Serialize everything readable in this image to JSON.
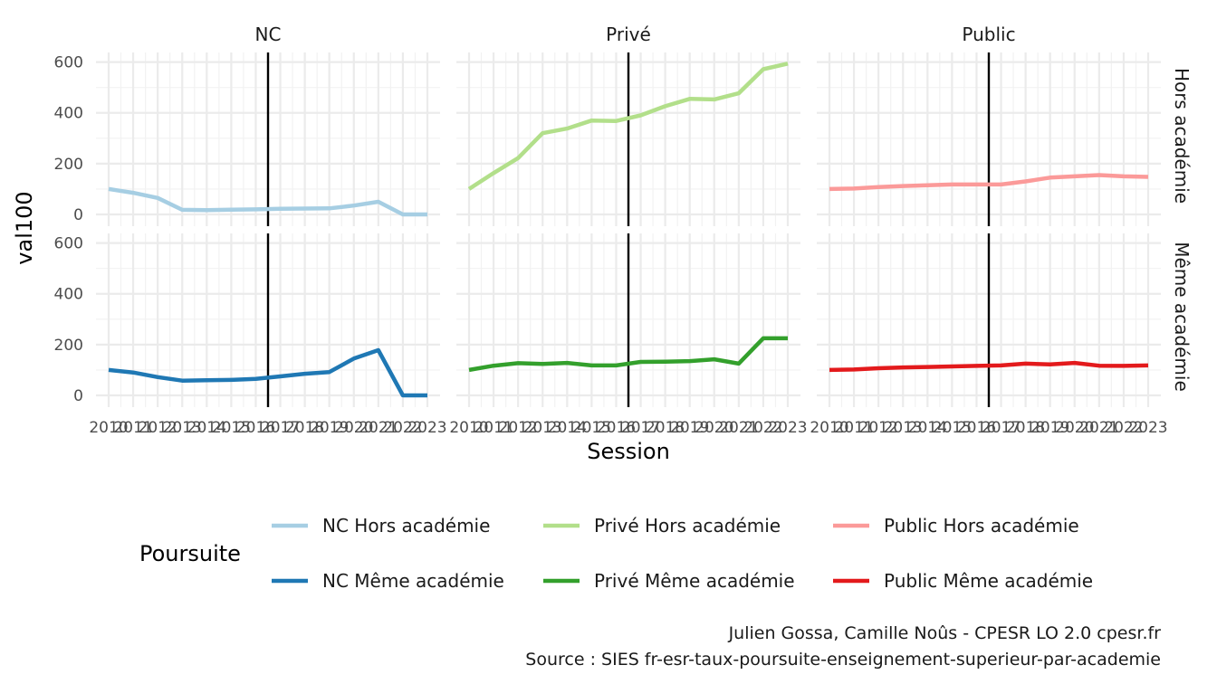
{
  "chart_data": {
    "type": "line",
    "xlabel": "Session",
    "ylabel": "val100",
    "x": [
      2010,
      2011,
      2012,
      2013,
      2014,
      2015,
      2016,
      2017,
      2018,
      2019,
      2020,
      2021,
      2022,
      2023
    ],
    "x_tick_labels": [
      "2010",
      "2011",
      "2012",
      "2013",
      "2014",
      "2015",
      "2016",
      "2017",
      "2018",
      "2019",
      "2020",
      "2021",
      "2022",
      "2023"
    ],
    "ylim": [
      0,
      620
    ],
    "y_ticks": [
      0,
      200,
      400,
      600
    ],
    "vline_x": 2016.5,
    "columns": [
      "NC",
      "Privé",
      "Public"
    ],
    "rows": [
      "Hors académie",
      "Même académie"
    ],
    "grid": true,
    "legend_title": "Poursuite",
    "legend_position": "bottom",
    "series": [
      {
        "name": "NC Hors académie",
        "column": 0,
        "row": 0,
        "color": "#a6cee3",
        "values": [
          100,
          85,
          65,
          18,
          17,
          19,
          20,
          22,
          23,
          24,
          35,
          50,
          0,
          0
        ]
      },
      {
        "name": "NC Même académie",
        "column": 0,
        "row": 1,
        "color": "#1f78b4",
        "values": [
          100,
          90,
          72,
          58,
          60,
          61,
          65,
          75,
          85,
          92,
          145,
          178,
          0,
          0
        ]
      },
      {
        "name": "Privé Hors académie",
        "column": 1,
        "row": 0,
        "color": "#b2df8a",
        "values": [
          100,
          163,
          222,
          320,
          338,
          370,
          368,
          390,
          426,
          455,
          453,
          477,
          572,
          594
        ]
      },
      {
        "name": "Privé Même académie",
        "column": 1,
        "row": 1,
        "color": "#33a02c",
        "values": [
          100,
          117,
          127,
          124,
          128,
          118,
          118,
          132,
          133,
          135,
          142,
          125,
          225,
          225
        ]
      },
      {
        "name": "Public Hors académie",
        "column": 2,
        "row": 0,
        "color": "#fb9a99",
        "values": [
          100,
          102,
          108,
          112,
          115,
          118,
          118,
          118,
          130,
          145,
          150,
          155,
          150,
          148
        ]
      },
      {
        "name": "Public Même académie",
        "column": 2,
        "row": 1,
        "color": "#e31a1c",
        "values": [
          100,
          102,
          107,
          110,
          112,
          114,
          116,
          118,
          125,
          122,
          128,
          117,
          116,
          118
        ]
      }
    ],
    "caption": [
      "Julien Gossa, Camille Noûs - CPESR LO 2.0 cpesr.fr",
      "Source : SIES fr-esr-taux-poursuite-enseignement-superieur-par-academie"
    ]
  }
}
